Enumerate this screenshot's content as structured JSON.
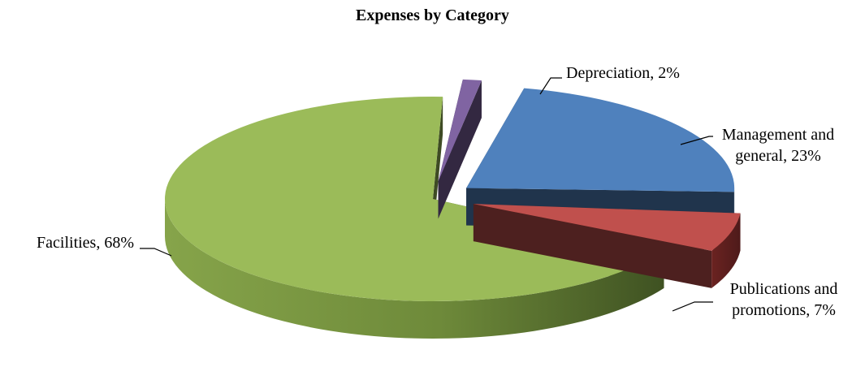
{
  "chart_data": {
    "type": "pie",
    "title": "Expenses by Category",
    "slices": [
      {
        "label": "Management and general, 23%",
        "label_lines": [
          "Management and",
          "general, 23%"
        ],
        "value": 23,
        "color": "#4f81bd"
      },
      {
        "label": "Publications and promotions, 7%",
        "label_lines": [
          "Publications and",
          "promotions, 7%"
        ],
        "value": 7,
        "color": "#c0504d"
      },
      {
        "label": "Facilities, 68%",
        "label_lines": [
          "Facilities, 68%"
        ],
        "value": 68,
        "color": "#9bbb59"
      },
      {
        "label": "Depreciation, 2%",
        "label_lines": [
          "Depreciation, 2%"
        ],
        "value": 2,
        "color": "#8064a2"
      }
    ],
    "legend": "none",
    "exploded": true,
    "three_d": true
  }
}
